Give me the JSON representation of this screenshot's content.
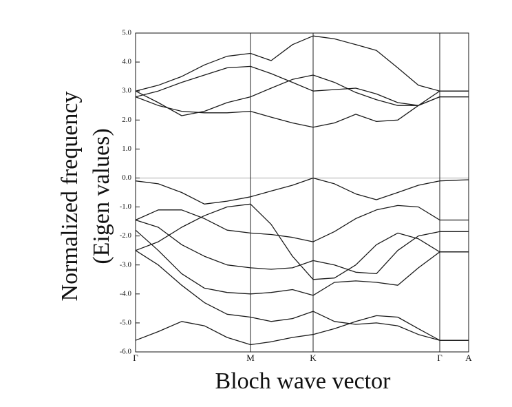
{
  "chart_data": {
    "type": "line",
    "xlabel": "Bloch wave vector",
    "ylabel": [
      "Normalized frequency",
      "(Eigen values)"
    ],
    "x": [
      0,
      0.33,
      0.67,
      1.0,
      1.33,
      1.67,
      1.97,
      2.28,
      2.58,
      2.89,
      3.2,
      3.5,
      3.81,
      4.11,
      4.42,
      4.63,
      4.84
    ],
    "xlim": [
      0,
      4.84
    ],
    "xticks": [
      {
        "value": 0,
        "label": "Γ"
      },
      {
        "value": 1.67,
        "label": "M"
      },
      {
        "value": 2.58,
        "label": "K"
      },
      {
        "value": 4.42,
        "label": "Γ"
      },
      {
        "value": 4.84,
        "label": "A"
      }
    ],
    "ylim": [
      -6,
      5
    ],
    "yticks": [
      {
        "value": 5,
        "label": "5.0"
      },
      {
        "value": 4,
        "label": "4.0"
      },
      {
        "value": 3,
        "label": "3.0"
      },
      {
        "value": 2,
        "label": "2.0"
      },
      {
        "value": 1,
        "label": "1.0"
      },
      {
        "value": 0,
        "label": "0.0"
      },
      {
        "value": -1,
        "label": "-1.0"
      },
      {
        "value": -2,
        "label": "-2.0"
      },
      {
        "value": -3,
        "label": "-3.0"
      },
      {
        "value": -4,
        "label": "-4.0"
      },
      {
        "value": -5,
        "label": "-5.0"
      },
      {
        "value": -6,
        "label": "-6.0"
      }
    ],
    "zero_line": true,
    "vertical_lines_at_xticks": true,
    "series": [
      {
        "color": "#1a1a1a",
        "values": [
          3.0,
          3.2,
          3.5,
          3.9,
          4.2,
          4.3,
          4.05,
          4.6,
          4.9,
          4.8,
          4.6,
          4.4,
          3.8,
          3.2,
          3.0,
          3.0,
          3.0
        ]
      },
      {
        "color": "#1a1a1a",
        "values": [
          2.8,
          3.0,
          3.3,
          3.55,
          3.8,
          3.85,
          3.6,
          3.3,
          3.0,
          3.05,
          3.1,
          2.9,
          2.6,
          2.5,
          3.0,
          3.0,
          3.0
        ]
      },
      {
        "color": "#1a1a1a",
        "values": [
          3.0,
          2.6,
          2.15,
          2.3,
          2.6,
          2.8,
          3.1,
          3.4,
          3.55,
          3.3,
          2.95,
          2.7,
          2.5,
          2.5,
          2.8,
          2.8,
          2.8
        ]
      },
      {
        "color": "#1a1a1a",
        "values": [
          2.8,
          2.5,
          2.3,
          2.25,
          2.25,
          2.3,
          2.1,
          1.9,
          1.75,
          1.9,
          2.2,
          1.95,
          2.0,
          2.5,
          2.8,
          2.8,
          2.8
        ]
      },
      {
        "color": "#1a1a1a",
        "values": [
          -0.1,
          -0.2,
          -0.5,
          -0.9,
          -0.8,
          -0.65,
          -0.45,
          -0.25,
          0.0,
          -0.2,
          -0.55,
          -0.75,
          -0.5,
          -0.25,
          -0.1,
          -0.08,
          -0.06
        ]
      },
      {
        "color": "#1a1a1a",
        "values": [
          -1.45,
          -1.1,
          -1.1,
          -1.4,
          -1.8,
          -1.9,
          -1.95,
          -2.05,
          -2.2,
          -1.85,
          -1.4,
          -1.1,
          -0.95,
          -1.0,
          -1.45,
          -1.45,
          -1.45
        ]
      },
      {
        "color": "#1a1a1a",
        "values": [
          -1.45,
          -1.7,
          -2.3,
          -2.7,
          -3.0,
          -3.1,
          -3.15,
          -3.1,
          -2.85,
          -3.0,
          -3.25,
          -3.3,
          -2.5,
          -2.0,
          -1.85,
          -1.85,
          -1.85
        ]
      },
      {
        "color": "#1a1a1a",
        "values": [
          -2.5,
          -2.2,
          -1.7,
          -1.3,
          -1.0,
          -0.9,
          -1.6,
          -2.7,
          -3.5,
          -3.45,
          -3.0,
          -2.3,
          -1.9,
          -2.1,
          -2.55,
          -2.55,
          -2.55
        ]
      },
      {
        "color": "#1a1a1a",
        "values": [
          -1.8,
          -2.5,
          -3.3,
          -3.8,
          -3.95,
          -4.0,
          -3.95,
          -3.85,
          -4.05,
          -3.6,
          -3.55,
          -3.6,
          -3.7,
          -3.1,
          -2.55,
          -2.55,
          -2.55
        ]
      },
      {
        "color": "#1a1a1a",
        "values": [
          -2.5,
          -3.0,
          -3.7,
          -4.3,
          -4.7,
          -4.8,
          -4.95,
          -4.85,
          -4.6,
          -4.95,
          -5.05,
          -5.0,
          -5.1,
          -5.4,
          -5.6,
          -5.6,
          -5.6
        ]
      },
      {
        "color": "#1a1a1a",
        "values": [
          -5.6,
          -5.3,
          -4.95,
          -5.1,
          -5.5,
          -5.75,
          -5.65,
          -5.5,
          -5.4,
          -5.2,
          -4.95,
          -4.75,
          -4.8,
          -5.2,
          -5.6,
          -5.6,
          -5.6
        ]
      }
    ]
  }
}
